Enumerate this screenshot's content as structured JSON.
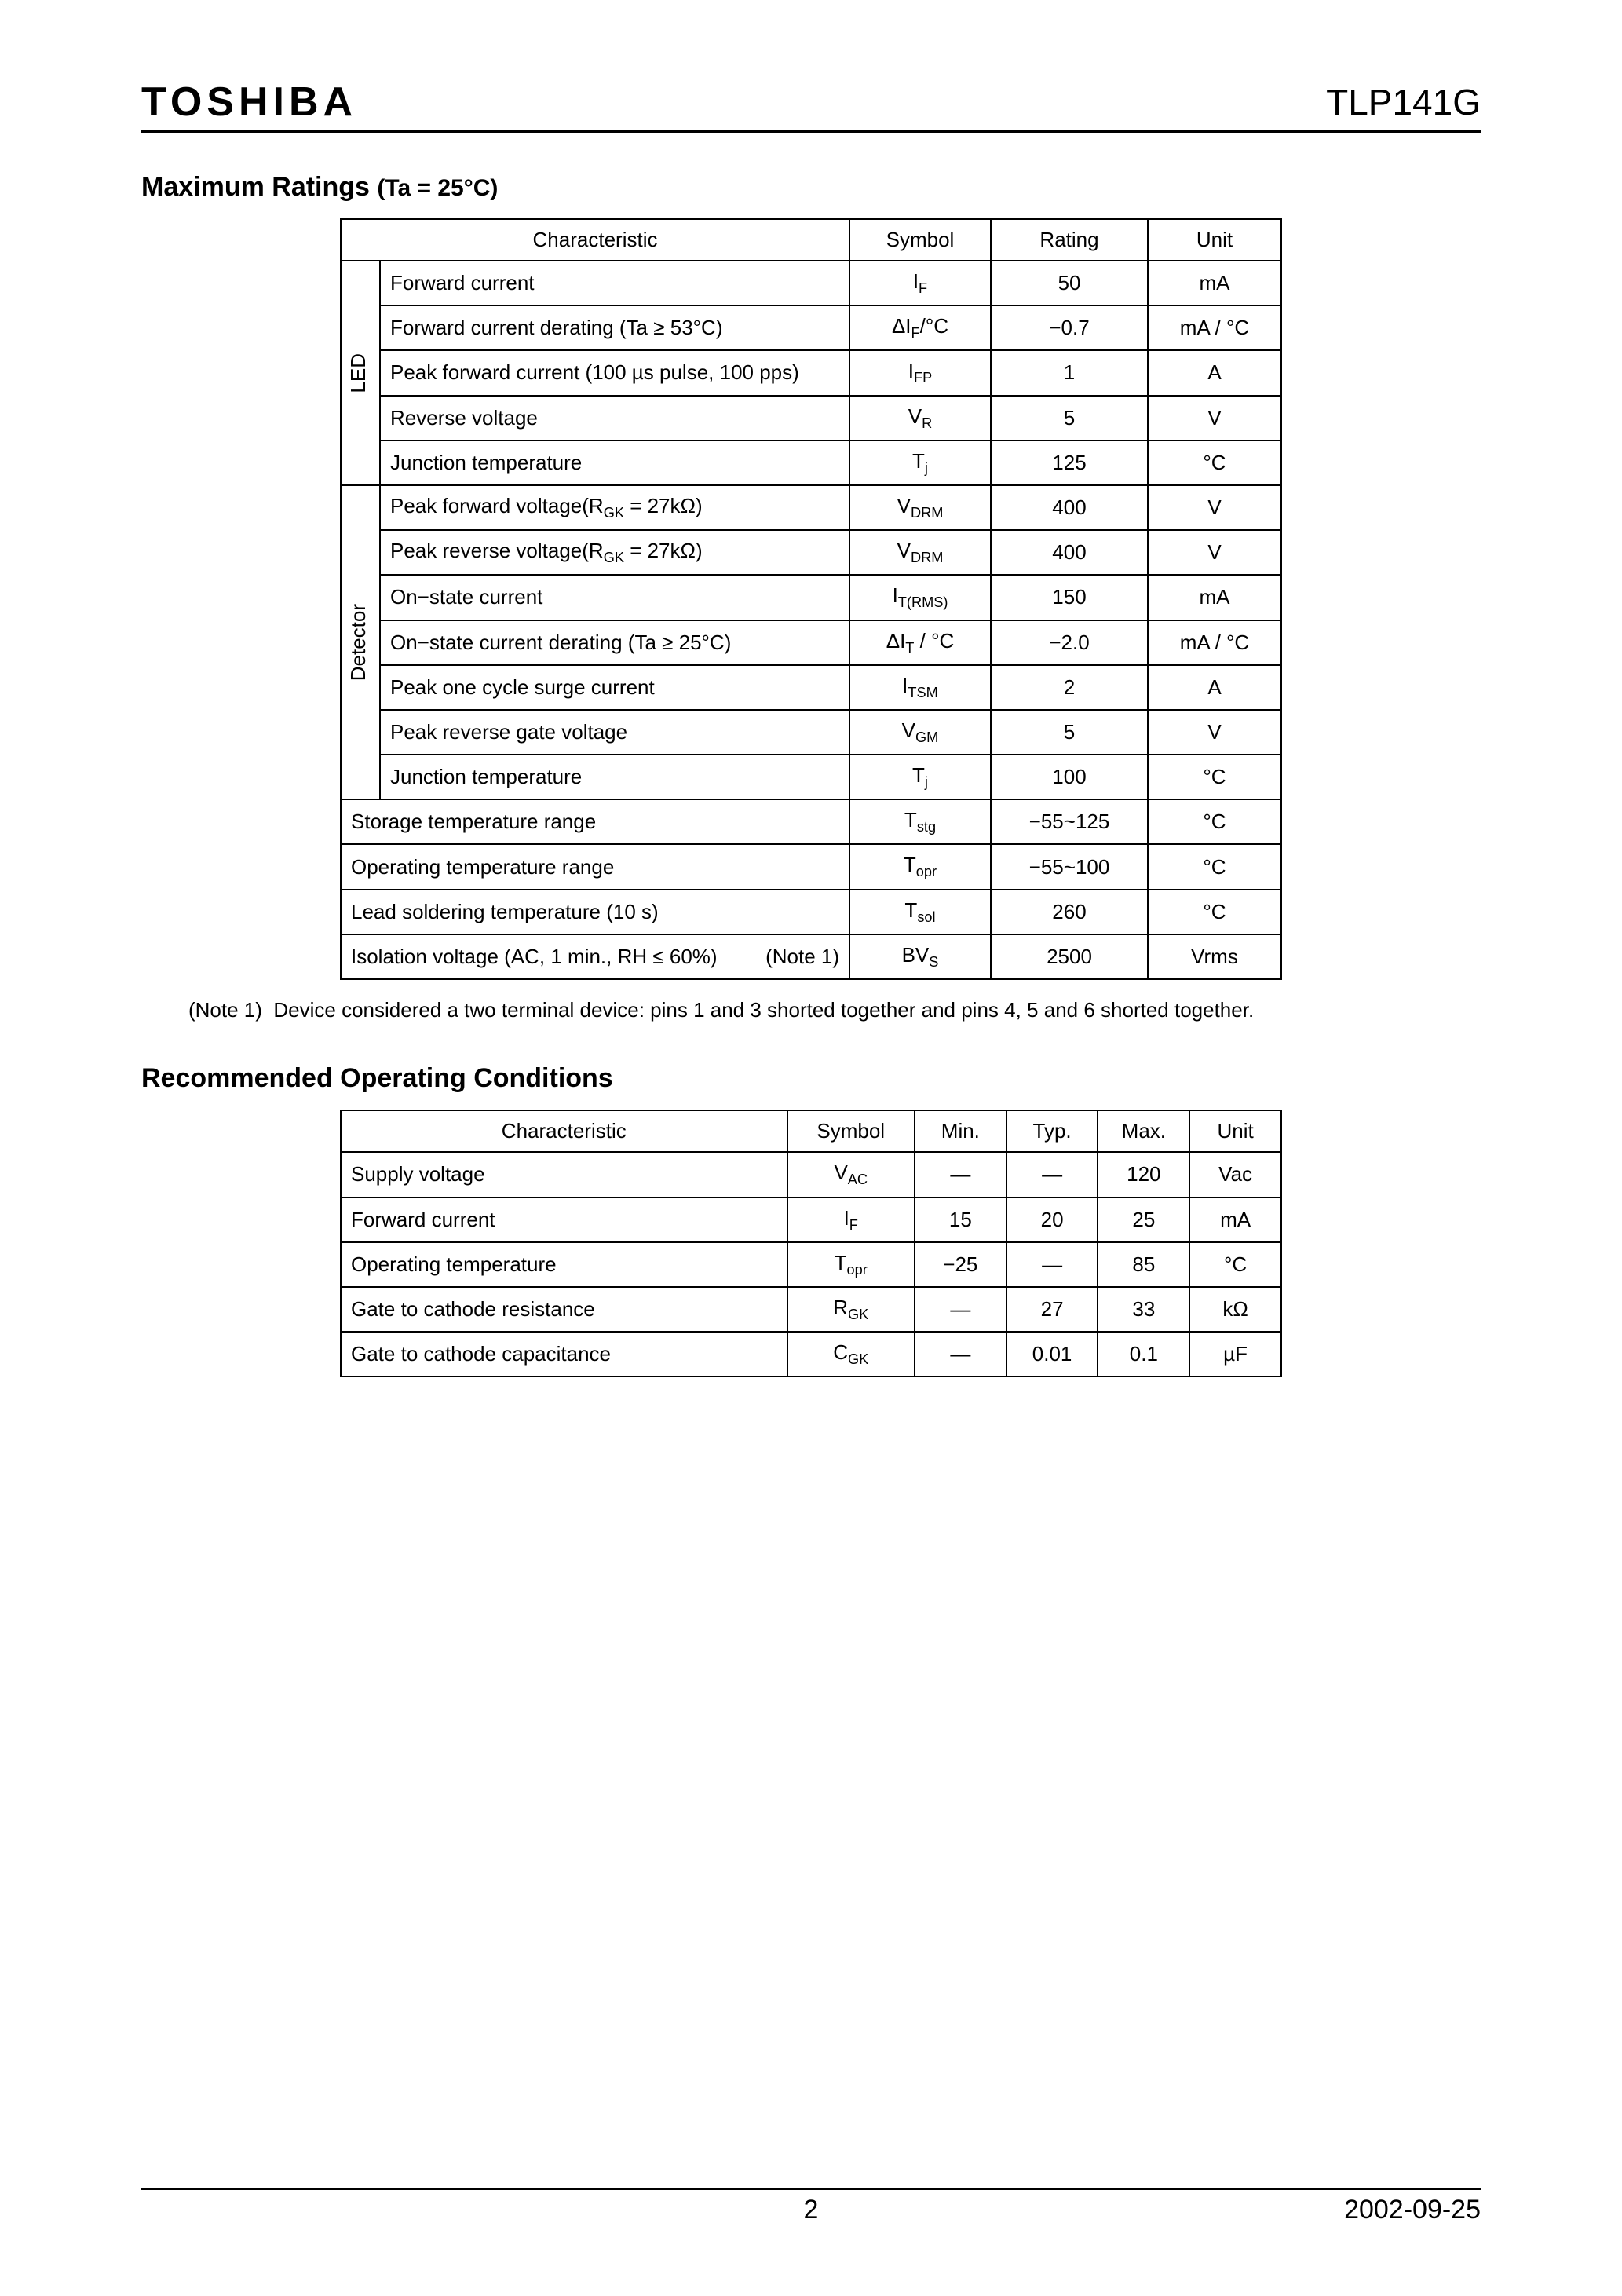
{
  "header": {
    "brand": "TOSHIBA",
    "part_number": "TLP141G"
  },
  "section1": {
    "title": "Maximum Ratings ",
    "condition": "(Ta = 25°C)",
    "headers": {
      "characteristic": "Characteristic",
      "symbol": "Symbol",
      "rating": "Rating",
      "unit": "Unit"
    },
    "groups": [
      {
        "label": "LED",
        "rows": [
          {
            "char": "Forward current",
            "sym_html": "I<sub>F</sub>",
            "rating": "50",
            "unit": "mA"
          },
          {
            "char": "Forward current derating (Ta ≥ 53°C)",
            "sym_html": "ΔI<sub>F</sub>/°C",
            "rating": "−0.7",
            "unit": "mA / °C"
          },
          {
            "char": "Peak forward current (100 µs pulse, 100 pps)",
            "sym_html": "I<sub>FP</sub>",
            "rating": "1",
            "unit": "A"
          },
          {
            "char": "Reverse voltage",
            "sym_html": "V<sub>R</sub>",
            "rating": "5",
            "unit": "V"
          },
          {
            "char": "Junction temperature",
            "sym_html": "T<sub>j</sub>",
            "rating": "125",
            "unit": "°C"
          }
        ]
      },
      {
        "label": "Detector",
        "rows": [
          {
            "char_html": "Peak forward voltage(R<sub>GK</sub> = 27kΩ)",
            "sym_html": "V<sub>DRM</sub>",
            "rating": "400",
            "unit": "V"
          },
          {
            "char_html": "Peak reverse voltage(R<sub>GK</sub> = 27kΩ)",
            "sym_html": "V<sub>DRM</sub>",
            "rating": "400",
            "unit": "V"
          },
          {
            "char": "On−state current",
            "sym_html": "I<sub>T(RMS)</sub>",
            "rating": "150",
            "unit": "mA"
          },
          {
            "char": "On−state current derating (Ta ≥ 25°C)",
            "sym_html": "ΔI<sub>T</sub> / °C",
            "rating": "−2.0",
            "unit": "mA / °C"
          },
          {
            "char": "Peak one cycle surge current",
            "sym_html": "I<sub>TSM</sub>",
            "rating": "2",
            "unit": "A"
          },
          {
            "char": "Peak reverse gate voltage",
            "sym_html": "V<sub>GM</sub>",
            "rating": "5",
            "unit": "V"
          },
          {
            "char": "Junction temperature",
            "sym_html": "T<sub>j</sub>",
            "rating": "100",
            "unit": "°C"
          }
        ]
      }
    ],
    "flat_rows": [
      {
        "char": "Storage temperature range",
        "sym_html": "T<sub>stg</sub>",
        "rating": "−55~125",
        "unit": "°C"
      },
      {
        "char": "Operating temperature range",
        "sym_html": "T<sub>opr</sub>",
        "rating": "−55~100",
        "unit": "°C"
      },
      {
        "char": "Lead soldering temperature (10 s)",
        "sym_html": "T<sub>sol</sub>",
        "rating": "260",
        "unit": "°C"
      },
      {
        "char": "Isolation voltage (AC, 1 min., RH ≤ 60%)",
        "note_ref": "(Note 1)",
        "sym_html": "BV<sub>S</sub>",
        "rating": "2500",
        "unit": "Vrms"
      }
    ],
    "note_label": "(Note 1)",
    "note_text": "Device considered a two terminal device: pins 1 and 3 shorted together and pins 4, 5 and 6 shorted together."
  },
  "section2": {
    "title": "Recommended Operating Conditions",
    "headers": {
      "characteristic": "Characteristic",
      "symbol": "Symbol",
      "min": "Min.",
      "typ": "Typ.",
      "max": "Max.",
      "unit": "Unit"
    },
    "rows": [
      {
        "char": "Supply voltage",
        "sym_html": "V<sub>AC</sub>",
        "min": "―",
        "typ": "―",
        "max": "120",
        "unit": "Vac"
      },
      {
        "char": "Forward current",
        "sym_html": "I<sub>F</sub>",
        "min": "15",
        "typ": "20",
        "max": "25",
        "unit": "mA"
      },
      {
        "char": "Operating temperature",
        "sym_html": "T<sub>opr</sub>",
        "min": "−25",
        "typ": "―",
        "max": "85",
        "unit": "°C"
      },
      {
        "char": "Gate to cathode resistance",
        "sym_html": "R<sub>GK</sub>",
        "min": "―",
        "typ": "27",
        "max": "33",
        "unit": "kΩ"
      },
      {
        "char": "Gate to cathode capacitance",
        "sym_html": "C<sub>GK</sub>",
        "min": "―",
        "typ": "0.01",
        "max": "0.1",
        "unit": "µF"
      }
    ]
  },
  "footer": {
    "page": "2",
    "date": "2002-09-25"
  },
  "styles": {
    "page_bg": "#ffffff",
    "text_color": "#000000",
    "border_color": "#000000",
    "font_family": "Arial, Helvetica, sans-serif"
  }
}
